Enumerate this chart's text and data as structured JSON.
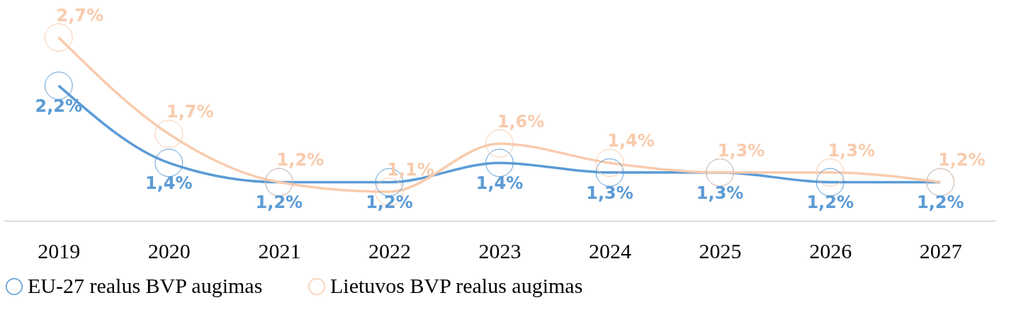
{
  "chart_data": {
    "type": "line",
    "categories": [
      "2019",
      "2020",
      "2021",
      "2022",
      "2023",
      "2024",
      "2025",
      "2026",
      "2027"
    ],
    "series": [
      {
        "name": "EU-27 realus BVP augimas",
        "color": "#5b9bd5",
        "values": [
          2.2,
          1.4,
          1.2,
          1.2,
          1.4,
          1.3,
          1.3,
          1.2,
          1.2
        ],
        "value_labels": [
          "2,2%",
          "1,4%",
          "1,2%",
          "1,2%",
          "1,4%",
          "1,3%",
          "1,3%",
          "1,2%",
          "1,2%"
        ]
      },
      {
        "name": "Lietuvos BVP realus augimas",
        "color": "#f8cbad",
        "values": [
          2.7,
          1.7,
          1.2,
          1.1,
          1.6,
          1.4,
          1.3,
          1.3,
          1.2
        ],
        "value_labels": [
          "2,7%",
          "1,7%",
          "1,2%",
          "1,1%",
          "1,6%",
          "1,4%",
          "1,3%",
          "1,3%",
          "1,2%"
        ]
      }
    ],
    "marker": "circle",
    "line_style": "solid",
    "grid": false,
    "legend": "bottom",
    "tick_labels": "x"
  }
}
